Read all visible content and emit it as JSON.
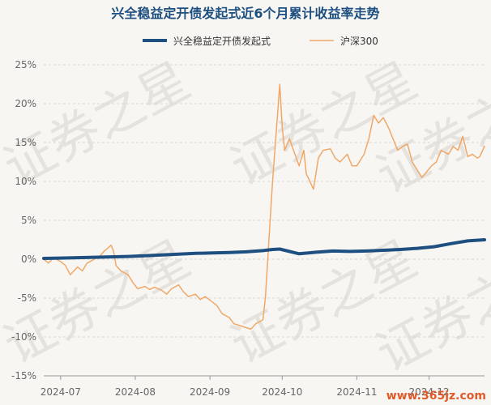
{
  "chart_data": {
    "type": "line",
    "title": "兴全稳益定开债发起式近6个月累计收益率走势",
    "legend": [
      "兴全稳益定开债发起式",
      "沪深300"
    ],
    "x_ticks": [
      "2024-07",
      "2024-08",
      "2024-09",
      "2024-10",
      "2024-11",
      "2024-12"
    ],
    "y_ticks": [
      "25%",
      "20%",
      "15%",
      "10%",
      "5%",
      "0%",
      "-5%",
      "-10%",
      "-15%"
    ],
    "ylim": [
      -15,
      25
    ],
    "x_range": [
      "2024-06-24",
      "2024-12-24"
    ],
    "y_unit": "%",
    "grid": true,
    "legend_position": "top-center",
    "series": [
      {
        "name": "兴全稳益定开债发起式",
        "color": "#1d4f80",
        "points": [
          [
            "2024-06-24",
            0.1
          ],
          [
            "2024-07-01",
            0.15
          ],
          [
            "2024-07-08",
            0.2
          ],
          [
            "2024-07-15",
            0.25
          ],
          [
            "2024-07-22",
            0.3
          ],
          [
            "2024-07-29",
            0.35
          ],
          [
            "2024-08-05",
            0.45
          ],
          [
            "2024-08-12",
            0.55
          ],
          [
            "2024-08-19",
            0.65
          ],
          [
            "2024-08-26",
            0.75
          ],
          [
            "2024-09-02",
            0.8
          ],
          [
            "2024-09-09",
            0.85
          ],
          [
            "2024-09-16",
            0.95
          ],
          [
            "2024-09-23",
            1.1
          ],
          [
            "2024-09-27",
            1.25
          ],
          [
            "2024-09-30",
            1.3
          ],
          [
            "2024-10-08",
            0.7
          ],
          [
            "2024-10-15",
            0.9
          ],
          [
            "2024-10-22",
            1.05
          ],
          [
            "2024-10-29",
            1.0
          ],
          [
            "2024-11-05",
            1.05
          ],
          [
            "2024-11-12",
            1.15
          ],
          [
            "2024-11-19",
            1.25
          ],
          [
            "2024-11-26",
            1.4
          ],
          [
            "2024-12-03",
            1.6
          ],
          [
            "2024-12-10",
            2.0
          ],
          [
            "2024-12-17",
            2.35
          ],
          [
            "2024-12-24",
            2.5
          ]
        ]
      },
      {
        "name": "沪深300",
        "color": "#f0a868",
        "points": [
          [
            "2024-06-24",
            0.0
          ],
          [
            "2024-06-26",
            -0.5
          ],
          [
            "2024-06-28",
            0.2
          ],
          [
            "2024-07-01",
            -0.3
          ],
          [
            "2024-07-03",
            -0.8
          ],
          [
            "2024-07-05",
            -2.0
          ],
          [
            "2024-07-08",
            -1.0
          ],
          [
            "2024-07-10",
            -1.5
          ],
          [
            "2024-07-12",
            -0.5
          ],
          [
            "2024-07-15",
            0.0
          ],
          [
            "2024-07-17",
            0.3
          ],
          [
            "2024-07-19",
            1.0
          ],
          [
            "2024-07-22",
            1.8
          ],
          [
            "2024-07-23",
            1.0
          ],
          [
            "2024-07-24",
            -0.8
          ],
          [
            "2024-07-26",
            -1.5
          ],
          [
            "2024-07-29",
            -2.0
          ],
          [
            "2024-07-31",
            -3.0
          ],
          [
            "2024-08-02",
            -3.8
          ],
          [
            "2024-08-05",
            -3.5
          ],
          [
            "2024-08-07",
            -3.9
          ],
          [
            "2024-08-09",
            -3.6
          ],
          [
            "2024-08-12",
            -4.0
          ],
          [
            "2024-08-14",
            -4.5
          ],
          [
            "2024-08-16",
            -3.8
          ],
          [
            "2024-08-19",
            -3.3
          ],
          [
            "2024-08-21",
            -4.2
          ],
          [
            "2024-08-23",
            -4.8
          ],
          [
            "2024-08-26",
            -4.5
          ],
          [
            "2024-08-28",
            -5.2
          ],
          [
            "2024-08-30",
            -4.8
          ],
          [
            "2024-09-02",
            -5.5
          ],
          [
            "2024-09-04",
            -6.0
          ],
          [
            "2024-09-06",
            -7.0
          ],
          [
            "2024-09-09",
            -7.5
          ],
          [
            "2024-09-11",
            -8.3
          ],
          [
            "2024-09-13",
            -8.5
          ],
          [
            "2024-09-18",
            -9.0
          ],
          [
            "2024-09-20",
            -8.3
          ],
          [
            "2024-09-23",
            -7.8
          ],
          [
            "2024-09-24",
            -5.0
          ],
          [
            "2024-09-25",
            0.0
          ],
          [
            "2024-09-26",
            5.0
          ],
          [
            "2024-09-27",
            10.0
          ],
          [
            "2024-09-30",
            22.5
          ],
          [
            "2024-10-01",
            17.0
          ],
          [
            "2024-10-02",
            14.0
          ],
          [
            "2024-10-04",
            15.5
          ],
          [
            "2024-10-08",
            12.0
          ],
          [
            "2024-10-10",
            14.0
          ],
          [
            "2024-10-11",
            11.0
          ],
          [
            "2024-10-14",
            9.0
          ],
          [
            "2024-10-16",
            13.0
          ],
          [
            "2024-10-18",
            14.0
          ],
          [
            "2024-10-21",
            14.2
          ],
          [
            "2024-10-23",
            13.0
          ],
          [
            "2024-10-25",
            12.5
          ],
          [
            "2024-10-28",
            13.5
          ],
          [
            "2024-10-30",
            12.0
          ],
          [
            "2024-11-01",
            12.0
          ],
          [
            "2024-11-04",
            13.5
          ],
          [
            "2024-11-06",
            15.5
          ],
          [
            "2024-11-08",
            18.5
          ],
          [
            "2024-11-10",
            17.5
          ],
          [
            "2024-11-12",
            18.2
          ],
          [
            "2024-11-14",
            17.0
          ],
          [
            "2024-11-16",
            15.5
          ],
          [
            "2024-11-18",
            14.0
          ],
          [
            "2024-11-20",
            14.5
          ],
          [
            "2024-11-22",
            14.8
          ],
          [
            "2024-11-24",
            12.5
          ],
          [
            "2024-11-26",
            11.5
          ],
          [
            "2024-11-28",
            10.5
          ],
          [
            "2024-12-02",
            12.0
          ],
          [
            "2024-12-04",
            12.5
          ],
          [
            "2024-12-06",
            14.0
          ],
          [
            "2024-12-09",
            13.5
          ],
          [
            "2024-12-11",
            14.5
          ],
          [
            "2024-12-13",
            14.0
          ],
          [
            "2024-12-15",
            15.8
          ],
          [
            "2024-12-17",
            13.2
          ],
          [
            "2024-12-19",
            13.5
          ],
          [
            "2024-12-21",
            13.0
          ],
          [
            "2024-12-22",
            13.2
          ],
          [
            "2024-12-24",
            14.5
          ]
        ]
      }
    ]
  },
  "watermark": "证券之星",
  "brand": "www.365jz.com"
}
